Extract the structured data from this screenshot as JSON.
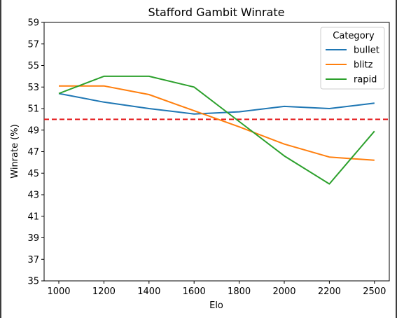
{
  "chart_data": {
    "type": "line",
    "title": "Stafford Gambit Winrate",
    "xlabel": "Elo",
    "ylabel": "Winrate (%)",
    "categories": [
      "1000",
      "1200",
      "1400",
      "1600",
      "1800",
      "2000",
      "2200",
      "2500"
    ],
    "ylim": [
      35,
      59
    ],
    "yticks": [
      "35",
      "37",
      "39",
      "41",
      "43",
      "45",
      "47",
      "49",
      "51",
      "53",
      "55",
      "57",
      "59"
    ],
    "grid": false,
    "legend": {
      "title": "Category",
      "placement": "top-right"
    },
    "reference_line": {
      "y": 50,
      "color": "#e41a1c",
      "style": "dashed"
    },
    "series": [
      {
        "name": "bullet",
        "color": "#1f77b4",
        "values": [
          52.4,
          51.6,
          51.0,
          50.5,
          50.7,
          51.2,
          51.0,
          51.5
        ]
      },
      {
        "name": "blitz",
        "color": "#ff7f0e",
        "values": [
          53.1,
          53.1,
          52.3,
          50.8,
          49.3,
          47.7,
          46.5,
          46.2
        ]
      },
      {
        "name": "rapid",
        "color": "#2ca02c",
        "values": [
          52.4,
          54.0,
          54.0,
          53.0,
          49.8,
          46.6,
          44.0,
          48.9
        ]
      }
    ]
  }
}
